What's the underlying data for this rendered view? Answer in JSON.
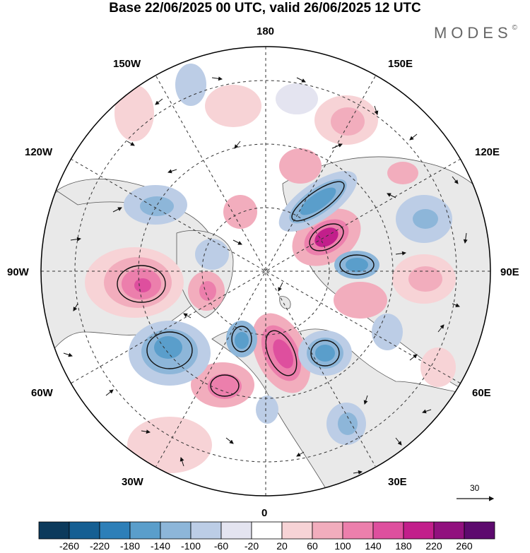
{
  "title": "Base 22/06/2025 00 UTC, valid 26/06/2025 12 UTC",
  "brand": {
    "name": "MODES",
    "mark": "©"
  },
  "longitude_labels": {
    "top": "180",
    "bottom": "0",
    "left": "90W",
    "right": "90E",
    "upper_left_1": "150W",
    "upper_left_2": "120W",
    "lower_left_1": "60W",
    "lower_left_2": "30W",
    "upper_right_1": "150E",
    "upper_right_2": "120E",
    "lower_right_1": "60E",
    "lower_right_2": "30E"
  },
  "vector_scale": {
    "value": "30"
  },
  "colorbar": {
    "ticks": [
      "-260",
      "-220",
      "-180",
      "-140",
      "-100",
      "-60",
      "-20",
      "20",
      "60",
      "100",
      "140",
      "180",
      "220",
      "260"
    ],
    "colors": [
      "#0c3a5c",
      "#155f93",
      "#2d7fb8",
      "#5a9ecb",
      "#8db6d9",
      "#bccde6",
      "#e4e4f0",
      "#ffffff",
      "#f7d3d6",
      "#f2adbd",
      "#ec7fac",
      "#de4f9e",
      "#c21f8b",
      "#91117e",
      "#5d0a6e"
    ]
  },
  "colors": {
    "land": "#eeeeee",
    "ocean": "#ffffff",
    "positive_strong": "#c21f8b",
    "negative_strong": "#155f93"
  }
}
